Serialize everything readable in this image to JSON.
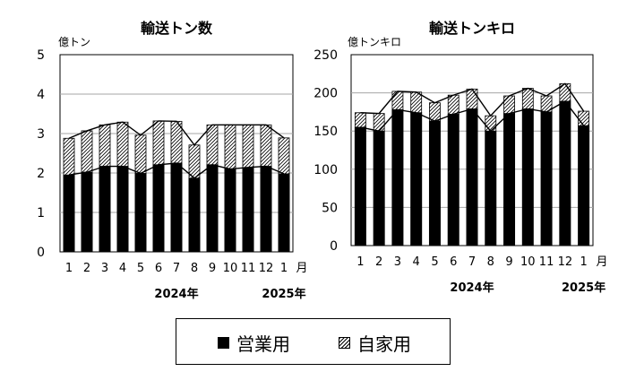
{
  "chart_data": [
    {
      "type": "bar",
      "stacked": true,
      "title": "輸送トン数",
      "ylabel": "億トン",
      "ylim": [
        0,
        5
      ],
      "yticks": [
        0,
        1,
        2,
        3,
        4,
        5
      ],
      "categories": [
        "1",
        "2",
        "3",
        "4",
        "5",
        "6",
        "7",
        "8",
        "9",
        "10",
        "11",
        "12",
        "1"
      ],
      "x_suffix": "月",
      "year_labels": [
        {
          "label": "2024年",
          "at_category": 6
        },
        {
          "label": "2025年",
          "at_category": 12
        }
      ],
      "grid": true,
      "series": [
        {
          "name": "営業用",
          "values": [
            1.95,
            2.02,
            2.17,
            2.17,
            1.99,
            2.21,
            2.25,
            1.87,
            2.21,
            2.1,
            2.14,
            2.17,
            1.98
          ]
        },
        {
          "name": "自家用",
          "values": [
            0.93,
            1.05,
            1.05,
            1.12,
            0.97,
            1.11,
            1.06,
            0.84,
            1.01,
            1.12,
            1.08,
            1.05,
            0.91
          ]
        }
      ]
    },
    {
      "type": "bar",
      "stacked": true,
      "title": "輸送トンキロ",
      "ylabel": "億トンキロ",
      "ylim": [
        0,
        250
      ],
      "yticks": [
        0,
        50,
        100,
        150,
        200,
        250
      ],
      "categories": [
        "1",
        "2",
        "3",
        "4",
        "5",
        "6",
        "7",
        "8",
        "9",
        "10",
        "11",
        "12",
        "1"
      ],
      "x_suffix": "月",
      "year_labels": [
        {
          "label": "2024年",
          "at_category": 6
        },
        {
          "label": "2025年",
          "at_category": 12
        }
      ],
      "grid": true,
      "series": [
        {
          "name": "営業用",
          "values": [
            155,
            150,
            178,
            174,
            163,
            172,
            179,
            150,
            173,
            179,
            175,
            189,
            157
          ]
        },
        {
          "name": "自家用",
          "values": [
            19,
            23,
            24,
            27,
            24,
            25,
            26,
            20,
            23,
            27,
            21,
            23,
            19
          ]
        }
      ]
    }
  ],
  "legend": {
    "items": [
      {
        "label": "営業用",
        "style": "solid",
        "color": "#000000"
      },
      {
        "label": "自家用",
        "style": "hatched",
        "color": "#000000"
      }
    ]
  }
}
